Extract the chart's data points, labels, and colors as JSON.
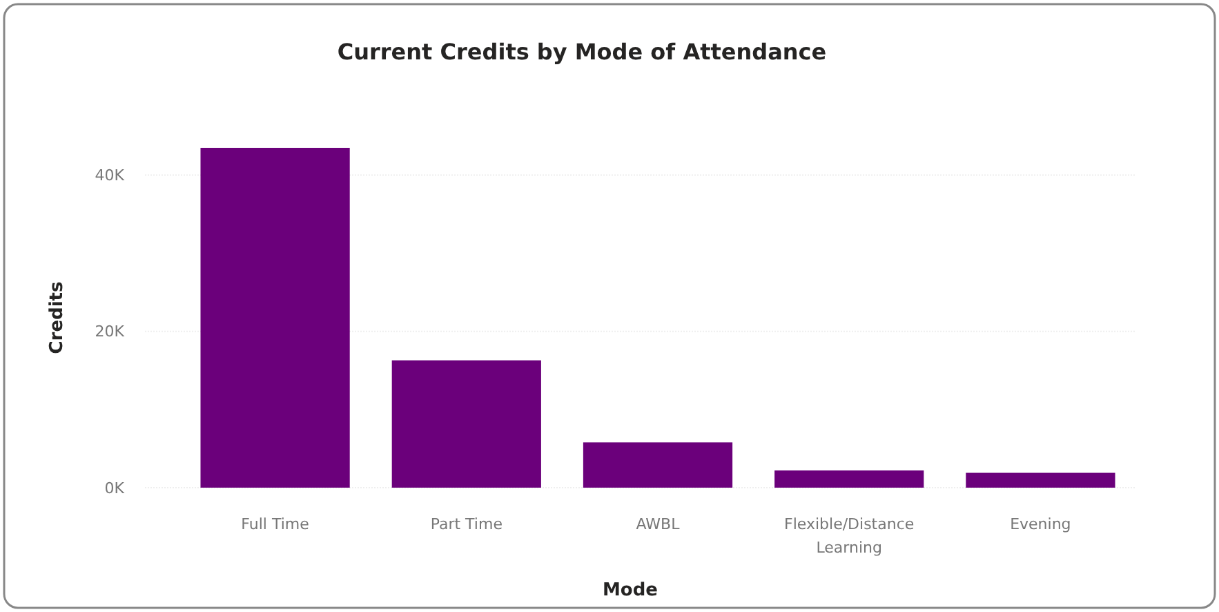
{
  "chart_data": {
    "type": "bar",
    "title": "Current Credits by Mode of Attendance",
    "xlabel": "Mode",
    "ylabel": "Credits",
    "categories": [
      "Full Time",
      "Part Time",
      "AWBL",
      "Flexible/Distance Learning",
      "Evening"
    ],
    "values": [
      43500,
      16300,
      5800,
      2200,
      1900
    ],
    "color": "#6b007b",
    "ylim": [
      0,
      43500
    ],
    "yticks": [
      {
        "value": 0,
        "label": "0K"
      },
      {
        "value": 20000,
        "label": "20K"
      },
      {
        "value": 40000,
        "label": "40K"
      }
    ],
    "grid": "y"
  }
}
